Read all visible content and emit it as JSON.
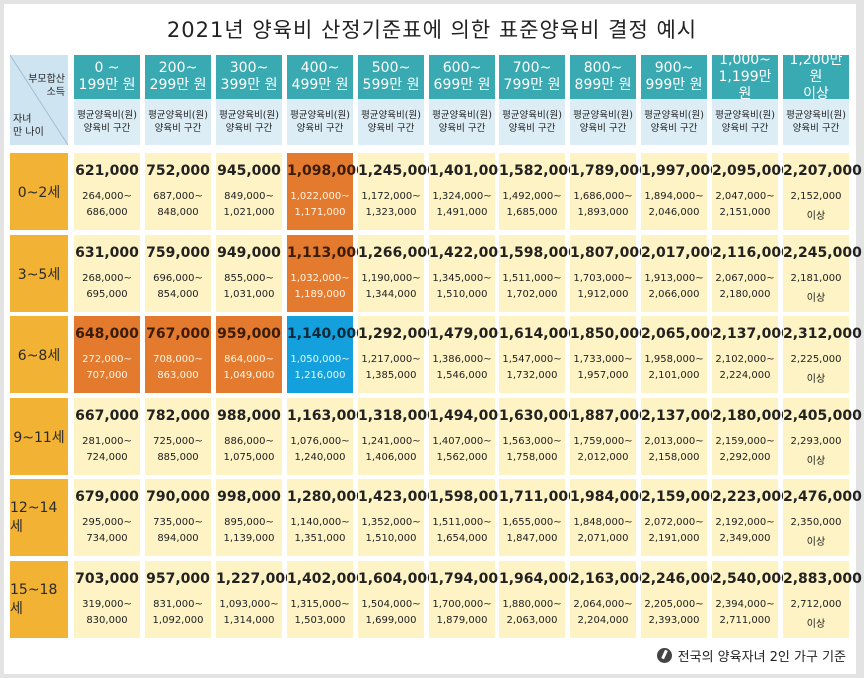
{
  "title": "2021년 양육비 산정기준표에 의한 표준양육비 결정 예시",
  "corner": {
    "income_label": "부모합산\n소득",
    "age_label": "자녀\n만 나이"
  },
  "sub_header": {
    "line1": "평균양육비(원)",
    "line2": "양육비 구간"
  },
  "income_brackets": [
    {
      "line1": "0 ~",
      "line2": "199만 원"
    },
    {
      "line1": "200~",
      "line2": "299만 원"
    },
    {
      "line1": "300~",
      "line2": "399만 원"
    },
    {
      "line1": "400~",
      "line2": "499만 원"
    },
    {
      "line1": "500~",
      "line2": "599만 원"
    },
    {
      "line1": "600~",
      "line2": "699만 원"
    },
    {
      "line1": "700~",
      "line2": "799만 원"
    },
    {
      "line1": "800~",
      "line2": "899만 원"
    },
    {
      "line1": "900~",
      "line2": "999만 원"
    },
    {
      "line1": "1,000~",
      "line2": "1,199만 원"
    },
    {
      "line1": "1,200만 원",
      "line2": "이상"
    }
  ],
  "rows": [
    {
      "age": "0~2세",
      "cells": [
        {
          "avg": "621,000",
          "r1": "264,000~",
          "r2": "686,000",
          "hl": ""
        },
        {
          "avg": "752,000",
          "r1": "687,000~",
          "r2": "848,000",
          "hl": ""
        },
        {
          "avg": "945,000",
          "r1": "849,000~",
          "r2": "1,021,000",
          "hl": ""
        },
        {
          "avg": "1,098,000",
          "r1": "1,022,000~",
          "r2": "1,171,000",
          "hl": "orange"
        },
        {
          "avg": "1,245,000",
          "r1": "1,172,000~",
          "r2": "1,323,000",
          "hl": ""
        },
        {
          "avg": "1,401,000",
          "r1": "1,324,000~",
          "r2": "1,491,000",
          "hl": ""
        },
        {
          "avg": "1,582,000",
          "r1": "1,492,000~",
          "r2": "1,685,000",
          "hl": ""
        },
        {
          "avg": "1,789,000",
          "r1": "1,686,000~",
          "r2": "1,893,000",
          "hl": ""
        },
        {
          "avg": "1,997,000",
          "r1": "1,894,000~",
          "r2": "2,046,000",
          "hl": ""
        },
        {
          "avg": "2,095,000",
          "r1": "2,047,000~",
          "r2": "2,151,000",
          "hl": ""
        },
        {
          "avg": "2,207,000",
          "r1": "2,152,000",
          "r2": "이상",
          "hl": ""
        }
      ]
    },
    {
      "age": "3~5세",
      "cells": [
        {
          "avg": "631,000",
          "r1": "268,000~",
          "r2": "695,000",
          "hl": ""
        },
        {
          "avg": "759,000",
          "r1": "696,000~",
          "r2": "854,000",
          "hl": ""
        },
        {
          "avg": "949,000",
          "r1": "855,000~",
          "r2": "1,031,000",
          "hl": ""
        },
        {
          "avg": "1,113,000",
          "r1": "1,032,000~",
          "r2": "1,189,000",
          "hl": "orange"
        },
        {
          "avg": "1,266,000",
          "r1": "1,190,000~",
          "r2": "1,344,000",
          "hl": ""
        },
        {
          "avg": "1,422,000",
          "r1": "1,345,000~",
          "r2": "1,510,000",
          "hl": ""
        },
        {
          "avg": "1,598,000",
          "r1": "1,511,000~",
          "r2": "1,702,000",
          "hl": ""
        },
        {
          "avg": "1,807,000",
          "r1": "1,703,000~",
          "r2": "1,912,000",
          "hl": ""
        },
        {
          "avg": "2,017,000",
          "r1": "1,913,000~",
          "r2": "2,066,000",
          "hl": ""
        },
        {
          "avg": "2,116,000",
          "r1": "2,067,000~",
          "r2": "2,180,000",
          "hl": ""
        },
        {
          "avg": "2,245,000",
          "r1": "2,181,000",
          "r2": "이상",
          "hl": ""
        }
      ]
    },
    {
      "age": "6~8세",
      "cells": [
        {
          "avg": "648,000",
          "r1": "272,000~",
          "r2": "707,000",
          "hl": "orange"
        },
        {
          "avg": "767,000",
          "r1": "708,000~",
          "r2": "863,000",
          "hl": "orange"
        },
        {
          "avg": "959,000",
          "r1": "864,000~",
          "r2": "1,049,000",
          "hl": "orange"
        },
        {
          "avg": "1,140,000",
          "r1": "1,050,000~",
          "r2": "1,216,000",
          "hl": "blue"
        },
        {
          "avg": "1,292,000",
          "r1": "1,217,000~",
          "r2": "1,385,000",
          "hl": ""
        },
        {
          "avg": "1,479,000",
          "r1": "1,386,000~",
          "r2": "1,546,000",
          "hl": ""
        },
        {
          "avg": "1,614,000",
          "r1": "1,547,000~",
          "r2": "1,732,000",
          "hl": ""
        },
        {
          "avg": "1,850,000",
          "r1": "1,733,000~",
          "r2": "1,957,000",
          "hl": ""
        },
        {
          "avg": "2,065,000",
          "r1": "1,958,000~",
          "r2": "2,101,000",
          "hl": ""
        },
        {
          "avg": "2,137,000",
          "r1": "2,102,000~",
          "r2": "2,224,000",
          "hl": ""
        },
        {
          "avg": "2,312,000",
          "r1": "2,225,000",
          "r2": "이상",
          "hl": ""
        }
      ]
    },
    {
      "age": "9~11세",
      "cells": [
        {
          "avg": "667,000",
          "r1": "281,000~",
          "r2": "724,000",
          "hl": ""
        },
        {
          "avg": "782,000",
          "r1": "725,000~",
          "r2": "885,000",
          "hl": ""
        },
        {
          "avg": "988,000",
          "r1": "886,000~",
          "r2": "1,075,000",
          "hl": ""
        },
        {
          "avg": "1,163,000",
          "r1": "1,076,000~",
          "r2": "1,240,000",
          "hl": ""
        },
        {
          "avg": "1,318,000",
          "r1": "1,241,000~",
          "r2": "1,406,000",
          "hl": ""
        },
        {
          "avg": "1,494,000",
          "r1": "1,407,000~",
          "r2": "1,562,000",
          "hl": ""
        },
        {
          "avg": "1,630,000",
          "r1": "1,563,000~",
          "r2": "1,758,000",
          "hl": ""
        },
        {
          "avg": "1,887,000",
          "r1": "1,759,000~",
          "r2": "2,012,000",
          "hl": ""
        },
        {
          "avg": "2,137,000",
          "r1": "2,013,000~",
          "r2": "2,158,000",
          "hl": ""
        },
        {
          "avg": "2,180,000",
          "r1": "2,159,000~",
          "r2": "2,292,000",
          "hl": ""
        },
        {
          "avg": "2,405,000",
          "r1": "2,293,000",
          "r2": "이상",
          "hl": ""
        }
      ]
    },
    {
      "age": "12~14세",
      "cells": [
        {
          "avg": "679,000",
          "r1": "295,000~",
          "r2": "734,000",
          "hl": ""
        },
        {
          "avg": "790,000",
          "r1": "735,000~",
          "r2": "894,000",
          "hl": ""
        },
        {
          "avg": "998,000",
          "r1": "895,000~",
          "r2": "1,139,000",
          "hl": ""
        },
        {
          "avg": "1,280,000",
          "r1": "1,140,000~",
          "r2": "1,351,000",
          "hl": ""
        },
        {
          "avg": "1,423,000",
          "r1": "1,352,000~",
          "r2": "1,510,000",
          "hl": ""
        },
        {
          "avg": "1,598,000",
          "r1": "1,511,000~",
          "r2": "1,654,000",
          "hl": ""
        },
        {
          "avg": "1,711,000",
          "r1": "1,655,000~",
          "r2": "1,847,000",
          "hl": ""
        },
        {
          "avg": "1,984,000",
          "r1": "1,848,000~",
          "r2": "2,071,000",
          "hl": ""
        },
        {
          "avg": "2,159,000",
          "r1": "2,072,000~",
          "r2": "2,191,000",
          "hl": ""
        },
        {
          "avg": "2,223,000",
          "r1": "2,192,000~",
          "r2": "2,349,000",
          "hl": ""
        },
        {
          "avg": "2,476,000",
          "r1": "2,350,000",
          "r2": "이상",
          "hl": ""
        }
      ]
    },
    {
      "age": "15~18세",
      "cells": [
        {
          "avg": "703,000",
          "r1": "319,000~",
          "r2": "830,000",
          "hl": ""
        },
        {
          "avg": "957,000",
          "r1": "831,000~",
          "r2": "1,092,000",
          "hl": ""
        },
        {
          "avg": "1,227,000",
          "r1": "1,093,000~",
          "r2": "1,314,000",
          "hl": ""
        },
        {
          "avg": "1,402,000",
          "r1": "1,315,000~",
          "r2": "1,503,000",
          "hl": ""
        },
        {
          "avg": "1,604,000",
          "r1": "1,504,000~",
          "r2": "1,699,000",
          "hl": ""
        },
        {
          "avg": "1,794,000",
          "r1": "1,700,000~",
          "r2": "1,879,000",
          "hl": ""
        },
        {
          "avg": "1,964,000",
          "r1": "1,880,000~",
          "r2": "2,063,000",
          "hl": ""
        },
        {
          "avg": "2,163,000",
          "r1": "2,064,000~",
          "r2": "2,204,000",
          "hl": ""
        },
        {
          "avg": "2,246,000",
          "r1": "2,205,000~",
          "r2": "2,393,000",
          "hl": ""
        },
        {
          "avg": "2,540,000",
          "r1": "2,394,000~",
          "r2": "2,711,000",
          "hl": ""
        },
        {
          "avg": "2,883,000",
          "r1": "2,712,000",
          "r2": "이상",
          "hl": ""
        }
      ]
    }
  ],
  "footer": {
    "text": "전국의 양육자녀 2인 가구 기준",
    "icon": "pen-icon"
  },
  "colors": {
    "header_teal": "#3aaab2",
    "subheader": "#dcedf5",
    "row_header": "#f2b233",
    "cell": "#fdf3c4",
    "highlight_orange": "#e47a2e",
    "highlight_blue": "#14a0dc"
  }
}
